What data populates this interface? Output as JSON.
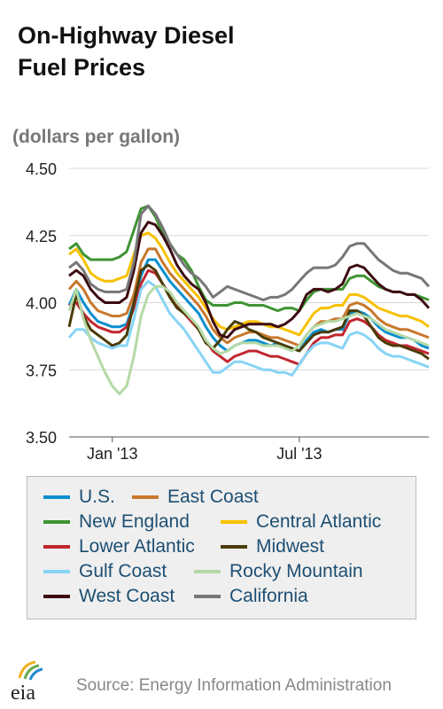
{
  "header": {
    "title_line1": "On-Highway Diesel",
    "title_line2": "Fuel Prices",
    "units": "(dollars per gallon)"
  },
  "footer": {
    "logo_text": "eia",
    "source": "Source: Energy Information Administration"
  },
  "chart_data": {
    "type": "line",
    "ylim": [
      3.5,
      4.5
    ],
    "yticks": [
      "4.50",
      "4.25",
      "4.00",
      "3.75",
      "3.50"
    ],
    "ytick_values": [
      4.5,
      4.25,
      4.0,
      3.75,
      3.5
    ],
    "xticks": [
      {
        "label": "Jan '13",
        "index": 6
      },
      {
        "label": "Jul '13",
        "index": 32
      }
    ],
    "grid": "horizontal",
    "legend_placement": "bottom",
    "series": [
      {
        "name": "U.S.",
        "color": "#0a8fd1",
        "values": [
          3.99,
          4.05,
          4.0,
          3.96,
          3.93,
          3.92,
          3.91,
          3.91,
          3.92,
          4.0,
          4.1,
          4.16,
          4.16,
          4.12,
          4.08,
          4.05,
          4.02,
          3.99,
          3.96,
          3.91,
          3.87,
          3.84,
          3.82,
          3.84,
          3.85,
          3.86,
          3.86,
          3.85,
          3.84,
          3.85,
          3.84,
          3.83,
          3.82,
          3.86,
          3.89,
          3.9,
          3.89,
          3.9,
          3.9,
          3.96,
          3.97,
          3.96,
          3.94,
          3.91,
          3.89,
          3.88,
          3.87,
          3.87,
          3.86,
          3.84,
          3.83
        ]
      },
      {
        "name": "East Coast",
        "color": "#c8782c",
        "values": [
          4.05,
          4.08,
          4.05,
          4.0,
          3.97,
          3.96,
          3.95,
          3.95,
          3.96,
          4.03,
          4.15,
          4.2,
          4.2,
          4.15,
          4.11,
          4.08,
          4.05,
          4.02,
          3.99,
          3.95,
          3.9,
          3.87,
          3.85,
          3.87,
          3.88,
          3.89,
          3.89,
          3.88,
          3.87,
          3.87,
          3.86,
          3.85,
          3.84,
          3.88,
          3.91,
          3.93,
          3.93,
          3.94,
          3.94,
          3.99,
          4.0,
          3.99,
          3.97,
          3.94,
          3.92,
          3.91,
          3.9,
          3.9,
          3.89,
          3.88,
          3.87
        ]
      },
      {
        "name": "New England",
        "color": "#3e9432",
        "values": [
          4.2,
          4.22,
          4.18,
          4.16,
          4.16,
          4.16,
          4.16,
          4.17,
          4.19,
          4.27,
          4.35,
          4.36,
          4.32,
          4.26,
          4.22,
          4.18,
          4.16,
          4.12,
          4.06,
          4.01,
          3.99,
          3.99,
          3.99,
          4.0,
          4.0,
          3.99,
          3.99,
          3.99,
          3.98,
          3.97,
          3.98,
          3.98,
          3.97,
          4.01,
          4.04,
          4.05,
          4.05,
          4.05,
          4.05,
          4.09,
          4.1,
          4.1,
          4.08,
          4.06,
          4.05,
          4.04,
          4.04,
          4.03,
          4.03,
          4.02,
          4.01
        ]
      },
      {
        "name": "Central Atlantic",
        "color": "#f7c100",
        "values": [
          4.18,
          4.2,
          4.16,
          4.11,
          4.09,
          4.08,
          4.08,
          4.09,
          4.1,
          4.18,
          4.25,
          4.26,
          4.24,
          4.2,
          4.15,
          4.11,
          4.08,
          4.05,
          4.02,
          3.98,
          3.94,
          3.91,
          3.9,
          3.91,
          3.92,
          3.93,
          3.93,
          3.92,
          3.91,
          3.91,
          3.9,
          3.89,
          3.88,
          3.92,
          3.96,
          3.98,
          3.98,
          3.99,
          3.99,
          4.03,
          4.03,
          4.02,
          4.0,
          3.98,
          3.97,
          3.96,
          3.95,
          3.95,
          3.94,
          3.93,
          3.91
        ]
      },
      {
        "name": "Lower Atlantic",
        "color": "#c0262f",
        "values": [
          3.99,
          4.0,
          3.96,
          3.93,
          3.91,
          3.9,
          3.89,
          3.89,
          3.91,
          3.98,
          4.07,
          4.12,
          4.11,
          4.07,
          4.03,
          3.99,
          3.96,
          3.93,
          3.9,
          3.86,
          3.82,
          3.8,
          3.78,
          3.8,
          3.81,
          3.82,
          3.82,
          3.81,
          3.8,
          3.8,
          3.79,
          3.78,
          3.77,
          3.81,
          3.85,
          3.87,
          3.87,
          3.88,
          3.88,
          3.93,
          3.94,
          3.93,
          3.91,
          3.88,
          3.86,
          3.85,
          3.84,
          3.84,
          3.83,
          3.82,
          3.81
        ]
      },
      {
        "name": "Midwest",
        "color": "#4a3b07",
        "values": [
          3.91,
          4.03,
          3.95,
          3.9,
          3.88,
          3.86,
          3.84,
          3.85,
          3.88,
          4.0,
          4.12,
          4.14,
          4.12,
          4.07,
          4.02,
          3.98,
          3.96,
          3.94,
          3.9,
          3.85,
          3.83,
          3.86,
          3.9,
          3.93,
          3.92,
          3.9,
          3.89,
          3.87,
          3.86,
          3.85,
          3.84,
          3.83,
          3.82,
          3.85,
          3.88,
          3.89,
          3.89,
          3.9,
          3.91,
          3.97,
          3.97,
          3.95,
          3.91,
          3.87,
          3.85,
          3.84,
          3.84,
          3.83,
          3.82,
          3.81,
          3.79
        ]
      },
      {
        "name": "Gulf Coast",
        "color": "#87d4f5",
        "values": [
          3.87,
          3.9,
          3.9,
          3.87,
          3.85,
          3.84,
          3.83,
          3.84,
          3.84,
          3.94,
          4.05,
          4.08,
          4.06,
          4.01,
          3.96,
          3.93,
          3.9,
          3.86,
          3.82,
          3.78,
          3.74,
          3.74,
          3.76,
          3.78,
          3.78,
          3.77,
          3.76,
          3.75,
          3.75,
          3.74,
          3.74,
          3.73,
          3.77,
          3.81,
          3.84,
          3.85,
          3.85,
          3.84,
          3.83,
          3.88,
          3.89,
          3.88,
          3.86,
          3.83,
          3.81,
          3.8,
          3.8,
          3.79,
          3.78,
          3.77,
          3.76
        ]
      },
      {
        "name": "Rocky Mountain",
        "color": "#b5d9a6",
        "values": [
          3.97,
          4.05,
          3.94,
          3.86,
          3.8,
          3.74,
          3.69,
          3.66,
          3.69,
          3.8,
          3.95,
          4.03,
          4.06,
          4.06,
          4.04,
          4.0,
          3.97,
          3.94,
          3.91,
          3.86,
          3.83,
          3.81,
          3.82,
          3.84,
          3.85,
          3.85,
          3.85,
          3.84,
          3.84,
          3.84,
          3.83,
          3.82,
          3.84,
          3.88,
          3.91,
          3.92,
          3.93,
          3.93,
          3.94,
          3.95,
          3.96,
          3.95,
          3.94,
          3.92,
          3.9,
          3.89,
          3.88,
          3.87,
          3.86,
          3.85,
          3.84
        ]
      },
      {
        "name": "West Coast",
        "color": "#3d0c12",
        "values": [
          4.1,
          4.12,
          4.1,
          4.05,
          4.02,
          4.0,
          4.0,
          4.0,
          4.02,
          4.12,
          4.26,
          4.3,
          4.29,
          4.25,
          4.2,
          4.14,
          4.1,
          4.07,
          4.05,
          4.0,
          3.93,
          3.88,
          3.87,
          3.9,
          3.91,
          3.92,
          3.92,
          3.92,
          3.92,
          3.91,
          3.92,
          3.94,
          3.97,
          4.03,
          4.05,
          4.05,
          4.04,
          4.05,
          4.07,
          4.13,
          4.14,
          4.13,
          4.1,
          4.07,
          4.05,
          4.04,
          4.04,
          4.03,
          4.03,
          4.01,
          3.98
        ]
      },
      {
        "name": "California",
        "color": "#777777",
        "values": [
          4.13,
          4.15,
          4.12,
          4.07,
          4.05,
          4.04,
          4.04,
          4.04,
          4.05,
          4.15,
          4.33,
          4.36,
          4.33,
          4.28,
          4.22,
          4.18,
          4.14,
          4.11,
          4.09,
          4.06,
          4.02,
          4.04,
          4.06,
          4.05,
          4.04,
          4.03,
          4.02,
          4.01,
          4.02,
          4.02,
          4.03,
          4.05,
          4.08,
          4.11,
          4.13,
          4.13,
          4.13,
          4.14,
          4.17,
          4.21,
          4.22,
          4.22,
          4.19,
          4.16,
          4.14,
          4.12,
          4.11,
          4.11,
          4.1,
          4.09,
          4.06
        ]
      }
    ]
  }
}
